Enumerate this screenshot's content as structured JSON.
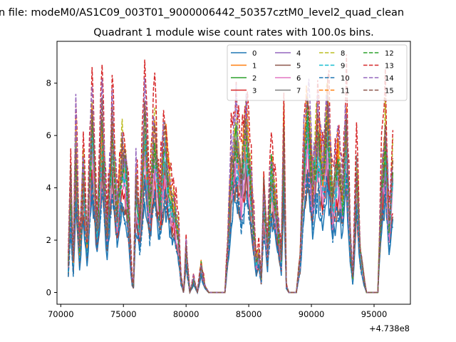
{
  "chart_data": {
    "type": "line",
    "suptitle": "n file: modeM0/AS1C09_003T01_9000006442_50357cztM0_level2_quad_clean",
    "title": "Quadrant 1 module wise count rates with 100.0s bins.",
    "xlabel": "",
    "ylabel": "",
    "x_offset_label": "+4.738e8",
    "xlim": [
      69700,
      97900
    ],
    "ylim": [
      -0.45,
      9.6
    ],
    "xticks": [
      70000,
      75000,
      80000,
      85000,
      90000,
      95000
    ],
    "xtick_labels": [
      "70000",
      "75000",
      "80000",
      "85000",
      "90000",
      "95000"
    ],
    "yticks": [
      0,
      2,
      4,
      6,
      8
    ],
    "ytick_labels": [
      "0",
      "2",
      "4",
      "6",
      "8"
    ],
    "grid": false,
    "legend_position": "top-right",
    "legend_columns": 4,
    "profile_x": [
      70600,
      70800,
      71000,
      71200,
      71500,
      71800,
      72100,
      72500,
      72900,
      73300,
      73700,
      74100,
      74500,
      74900,
      75200,
      75500,
      75650,
      75800,
      76000,
      76300,
      76700,
      77100,
      77500,
      77900,
      78300,
      78700,
      79100,
      79400,
      79600,
      79800,
      80000,
      80300,
      80600,
      80900,
      81200,
      81500,
      81800,
      82200,
      82600,
      82900,
      83100,
      83300,
      83600,
      84000,
      84400,
      84800,
      85200,
      85600,
      85800,
      86000,
      86200,
      86500,
      86800,
      87200,
      87600,
      87800,
      88000,
      88200,
      88500,
      88800,
      89100,
      89400,
      89700,
      90100,
      90500,
      90900,
      91300,
      91700,
      92100,
      92500,
      92800,
      93100,
      93300,
      93600,
      93900,
      94200,
      94400,
      94700,
      95000,
      95300,
      95600,
      95900,
      96200,
      96500
    ],
    "profile_y": [
      0.4,
      1.6,
      0.4,
      2.2,
      0.6,
      1.8,
      0.7,
      2.6,
      0.9,
      2.5,
      0.9,
      2.4,
      1.2,
      2.0,
      1.8,
      1.0,
      0.2,
      0.1,
      1.6,
      1.0,
      2.4,
      1.3,
      2.3,
      1.3,
      2.2,
      1.5,
      1.2,
      0.8,
      0.2,
      0.0,
      0.6,
      0.0,
      0.2,
      0.0,
      0.4,
      0.1,
      0.0,
      0.0,
      0.0,
      0.0,
      0.0,
      0.6,
      1.8,
      2.3,
      1.6,
      2.4,
      1.5,
      0.4,
      0.6,
      0.2,
      1.5,
      0.6,
      1.8,
      1.2,
      0.5,
      2.3,
      0.1,
      0.0,
      0.0,
      0.0,
      0.5,
      2.0,
      2.7,
      1.5,
      2.4,
      1.7,
      2.6,
      1.3,
      2.0,
      1.4,
      2.4,
      0.8,
      0.2,
      1.8,
      0.6,
      0.2,
      0.0,
      0.0,
      0.0,
      0.0,
      1.6,
      2.3,
      1.0,
      1.8
    ],
    "series": [
      {
        "name": "0",
        "color": "#1f77b4",
        "dash": "solid",
        "scale": 1.55
      },
      {
        "name": "1",
        "color": "#ff7f0e",
        "dash": "solid",
        "scale": 2.65
      },
      {
        "name": "2",
        "color": "#2ca02c",
        "dash": "solid",
        "scale": 2.45
      },
      {
        "name": "3",
        "color": "#d62728",
        "dash": "solid",
        "scale": 1.9
      },
      {
        "name": "4",
        "color": "#9467bd",
        "dash": "solid",
        "scale": 2.25
      },
      {
        "name": "5",
        "color": "#8c564b",
        "dash": "solid",
        "scale": 1.75
      },
      {
        "name": "6",
        "color": "#e377c2",
        "dash": "solid",
        "scale": 2.1
      },
      {
        "name": "7",
        "color": "#7f7f7f",
        "dash": "solid",
        "scale": 2.5
      },
      {
        "name": "8",
        "color": "#bcbd22",
        "dash": "dashed",
        "scale": 2.85
      },
      {
        "name": "9",
        "color": "#17becf",
        "dash": "dashed",
        "scale": 2.35
      },
      {
        "name": "10",
        "color": "#1f77b4",
        "dash": "dashed",
        "scale": 1.65
      },
      {
        "name": "11",
        "color": "#ff7f0e",
        "dash": "dashed",
        "scale": 2.75
      },
      {
        "name": "12",
        "color": "#2ca02c",
        "dash": "dashed",
        "scale": 2.55
      },
      {
        "name": "13",
        "color": "#d62728",
        "dash": "dashed",
        "scale": 3.25
      },
      {
        "name": "14",
        "color": "#9467bd",
        "dash": "dashed",
        "scale": 2.95
      },
      {
        "name": "15",
        "color": "#8c564b",
        "dash": "dashed",
        "scale": 2.6
      }
    ]
  }
}
